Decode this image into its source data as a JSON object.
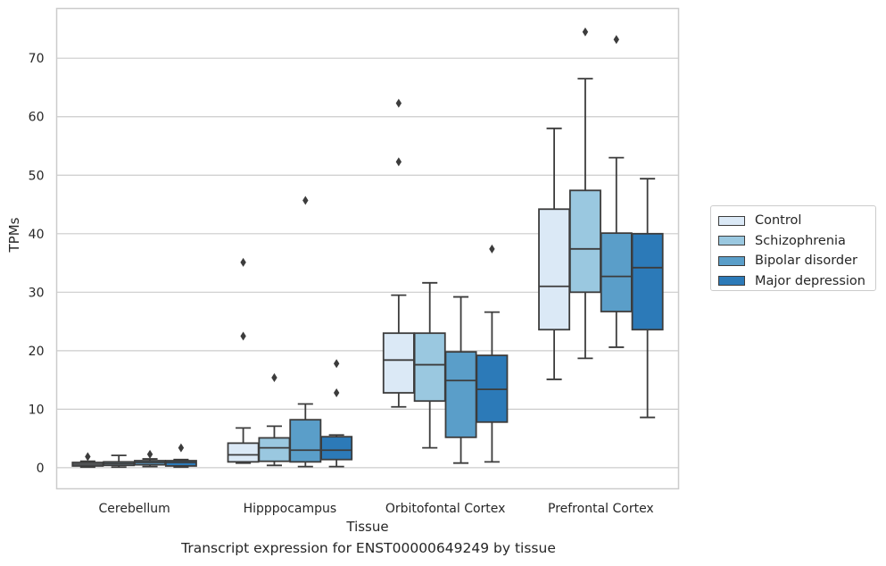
{
  "caption": "Transcript expression for ENST00000649249 by tissue",
  "chart_data": {
    "type": "box",
    "xlabel": "Tissue",
    "ylabel": "TPMs",
    "ylim": [
      -3.6,
      78.5
    ],
    "yticks": [
      0,
      10,
      20,
      30,
      40,
      50,
      60,
      70
    ],
    "grid": "horizontal",
    "legend_position": "right",
    "categories": [
      "Cerebellum",
      "Hipppocampus",
      "Orbitofontal Cortex",
      "Prefrontal Cortex"
    ],
    "series": [
      {
        "name": "Control",
        "color": "#dbe9f6",
        "boxes": [
          {
            "whislo": 0.1,
            "q1": 0.3,
            "med": 0.6,
            "q3": 0.9,
            "whishi": 1.1,
            "fliers": [
              1.9
            ]
          },
          {
            "whislo": 0.8,
            "q1": 1.0,
            "med": 2.2,
            "q3": 4.2,
            "whishi": 6.8,
            "fliers": [
              22.5,
              35.1
            ]
          },
          {
            "whislo": 10.4,
            "q1": 12.8,
            "med": 18.4,
            "q3": 23.0,
            "whishi": 29.5,
            "fliers": [
              52.3,
              62.3
            ]
          },
          {
            "whislo": 15.1,
            "q1": 23.6,
            "med": 31.0,
            "q3": 44.2,
            "whishi": 58.0,
            "fliers": []
          }
        ]
      },
      {
        "name": "Schizophrenia",
        "color": "#9ac8e0",
        "boxes": [
          {
            "whislo": 0.1,
            "q1": 0.4,
            "med": 0.7,
            "q3": 1.0,
            "whishi": 2.1,
            "fliers": []
          },
          {
            "whislo": 0.4,
            "q1": 1.1,
            "med": 3.4,
            "q3": 5.1,
            "whishi": 7.1,
            "fliers": [
              15.4
            ]
          },
          {
            "whislo": 3.4,
            "q1": 11.4,
            "med": 17.6,
            "q3": 23.0,
            "whishi": 31.6,
            "fliers": []
          },
          {
            "whislo": 18.7,
            "q1": 30.0,
            "med": 37.4,
            "q3": 47.4,
            "whishi": 66.5,
            "fliers": [
              74.5
            ]
          }
        ]
      },
      {
        "name": "Bipolar disorder",
        "color": "#5a9ec9",
        "boxes": [
          {
            "whislo": 0.2,
            "q1": 0.5,
            "med": 0.9,
            "q3": 1.2,
            "whishi": 1.5,
            "fliers": [
              2.3
            ]
          },
          {
            "whislo": 0.2,
            "q1": 1.0,
            "med": 3.0,
            "q3": 8.2,
            "whishi": 10.9,
            "fliers": [
              45.7
            ]
          },
          {
            "whislo": 0.8,
            "q1": 5.2,
            "med": 14.9,
            "q3": 19.8,
            "whishi": 29.2,
            "fliers": []
          },
          {
            "whislo": 20.6,
            "q1": 26.7,
            "med": 32.7,
            "q3": 40.1,
            "whishi": 53.0,
            "fliers": [
              73.2
            ]
          }
        ]
      },
      {
        "name": "Major depression",
        "color": "#2c7ab8",
        "boxes": [
          {
            "whislo": 0.1,
            "q1": 0.3,
            "med": 0.9,
            "q3": 1.2,
            "whishi": 1.4,
            "fliers": [
              3.4
            ]
          },
          {
            "whislo": 0.2,
            "q1": 1.4,
            "med": 3.0,
            "q3": 5.3,
            "whishi": 5.6,
            "fliers": [
              12.8,
              17.8
            ]
          },
          {
            "whislo": 1.0,
            "q1": 7.8,
            "med": 13.4,
            "q3": 19.2,
            "whishi": 26.6,
            "fliers": [
              37.4
            ]
          },
          {
            "whislo": 8.6,
            "q1": 23.6,
            "med": 34.2,
            "q3": 40.0,
            "whishi": 49.4,
            "fliers": []
          }
        ]
      }
    ]
  }
}
